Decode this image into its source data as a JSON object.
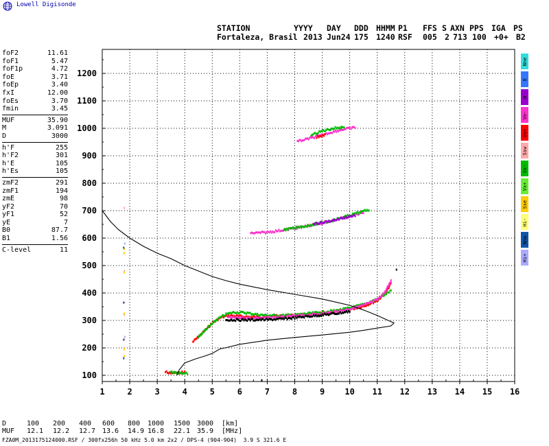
{
  "logo": {
    "text": "Lowell Digisonde"
  },
  "header": {
    "line1": [
      "STATION",
      "YYYY",
      "DAY",
      "DDD",
      "HHMM",
      "P1",
      "FFS",
      "S",
      "AXN",
      "PPS",
      "IGA",
      "PS"
    ],
    "line2": [
      "Fortaleza, Brasil",
      "2013",
      "Jun24",
      "175",
      "1240",
      "RSF",
      "005",
      "2",
      "713",
      "100",
      "+0+",
      "B2"
    ]
  },
  "params": [
    {
      "group": [
        {
          "name": "foF2",
          "value": "11.61"
        },
        {
          "name": "foF1",
          "value": "5.47"
        },
        {
          "name": "foF1p",
          "value": "4.72"
        },
        {
          "name": "foE",
          "value": "3.71"
        },
        {
          "name": "foEp",
          "value": "3.40"
        },
        {
          "name": "fxI",
          "value": "12.00"
        },
        {
          "name": "foEs",
          "value": "3.70"
        },
        {
          "name": "fmin",
          "value": "3.45"
        }
      ]
    },
    {
      "group": [
        {
          "name": "MUF",
          "value": "35.90"
        },
        {
          "name": "M",
          "value": "3.091"
        },
        {
          "name": "D",
          "value": "3000"
        }
      ]
    },
    {
      "group": [
        {
          "name": "h'F",
          "value": "255"
        },
        {
          "name": "h'F2",
          "value": "301"
        },
        {
          "name": "h'E",
          "value": "105"
        },
        {
          "name": "h'Es",
          "value": "105"
        }
      ]
    },
    {
      "group": [
        {
          "name": "zmF2",
          "value": "291"
        },
        {
          "name": "zmF1",
          "value": "194"
        },
        {
          "name": "zmE",
          "value": "98"
        },
        {
          "name": "yF2",
          "value": "70"
        },
        {
          "name": "yF1",
          "value": "52"
        },
        {
          "name": "yE",
          "value": "7"
        },
        {
          "name": "B0",
          "value": "87.7"
        },
        {
          "name": "B1",
          "value": "1.56"
        }
      ]
    },
    {
      "group": [
        {
          "name": "C-level",
          "value": "11"
        }
      ]
    }
  ],
  "legend": [
    {
      "label": "Nne",
      "color": "#33dddd"
    },
    {
      "label": "E",
      "color": "#3377ff"
    },
    {
      "label": "W",
      "color": "#9900cc"
    },
    {
      "label": "Vo-",
      "color": "#ff33cc"
    },
    {
      "label": "Vo+",
      "color": "#ff0000"
    },
    {
      "label": "Ssw",
      "color": "#ffaaaa"
    },
    {
      "label": "Vx-",
      "color": "#00bb00"
    },
    {
      "label": "Vx+",
      "color": "#66ee33"
    },
    {
      "label": "Sse",
      "color": "#ffcc00"
    },
    {
      "label": "Hi-",
      "color": "#ffff77"
    },
    {
      "label": "Nnw",
      "color": "#1155aa"
    },
    {
      "label": "Hi+",
      "color": "#aaaaff"
    }
  ],
  "bottom": {
    "d_label": "D",
    "d_values": [
      "100",
      "200",
      "400",
      "600",
      "800",
      "1000",
      "1500",
      "3000"
    ],
    "d_unit": "[km]",
    "muf_label": "MUF",
    "muf_values": [
      "12.1",
      "12.2",
      "12.7",
      "13.6",
      "14.9",
      "16.8",
      "22.1",
      "35.9"
    ],
    "muf_unit": "[MHz]",
    "file_line": "FZA0M_2013175124000.RSF / 300fx256h 50 kHz 5.0 km 2x2 / DPS-4 (904-904)  3.9 S 321.6 E"
  },
  "chart_data": {
    "type": "scatter",
    "xlim": [
      1,
      16
    ],
    "ylim": [
      75,
      1280
    ],
    "x_ticks": [
      1,
      2,
      3,
      4,
      5,
      6,
      7,
      8,
      9,
      10,
      11,
      12,
      13,
      14,
      15,
      16
    ],
    "y_ticks": [
      100,
      200,
      300,
      400,
      500,
      600,
      700,
      800,
      900,
      1000,
      1100,
      1200
    ],
    "grid": true,
    "profile": [
      [
        1.0,
        700
      ],
      [
        1.3,
        660
      ],
      [
        1.6,
        630
      ],
      [
        2.0,
        600
      ],
      [
        2.5,
        570
      ],
      [
        3.0,
        545
      ],
      [
        3.5,
        525
      ],
      [
        4.0,
        500
      ],
      [
        4.5,
        480
      ],
      [
        5.0,
        460
      ],
      [
        5.5,
        445
      ],
      [
        6.0,
        432
      ],
      [
        7.0,
        412
      ],
      [
        8.0,
        395
      ],
      [
        9.0,
        378
      ],
      [
        10.0,
        355
      ],
      [
        10.5,
        338
      ],
      [
        11.0,
        318
      ],
      [
        11.4,
        300
      ],
      [
        11.61,
        291
      ],
      [
        11.5,
        280
      ],
      [
        11.0,
        272
      ],
      [
        10.5,
        264
      ],
      [
        10.0,
        257
      ],
      [
        9.5,
        252
      ],
      [
        9.0,
        247
      ],
      [
        8.0,
        238
      ],
      [
        7.0,
        228
      ],
      [
        6.0,
        213
      ],
      [
        5.47,
        200
      ],
      [
        5.3,
        197
      ],
      [
        5.0,
        180
      ],
      [
        4.72,
        170
      ],
      [
        4.4,
        160
      ],
      [
        4.0,
        145
      ],
      [
        3.8,
        120
      ],
      [
        3.71,
        100
      ]
    ],
    "traces": [
      {
        "color": "#ff0000",
        "points": [
          [
            4.3,
            222
          ],
          [
            4.6,
            250
          ],
          [
            5.0,
            290
          ],
          [
            5.3,
            310
          ],
          [
            5.6,
            318
          ],
          [
            6.0,
            315
          ],
          [
            6.5,
            312
          ],
          [
            7.0,
            314
          ],
          [
            7.5,
            316
          ],
          [
            8.0,
            318
          ],
          [
            8.5,
            322
          ],
          [
            9.0,
            326
          ],
          [
            9.5,
            332
          ],
          [
            10.0,
            340
          ],
          [
            10.5,
            352
          ],
          [
            11.0,
            372
          ],
          [
            11.3,
            400
          ],
          [
            11.5,
            435
          ]
        ]
      },
      {
        "color": "#00bb00",
        "points": [
          [
            4.5,
            240
          ],
          [
            4.8,
            270
          ],
          [
            5.2,
            305
          ],
          [
            5.5,
            322
          ],
          [
            5.8,
            330
          ],
          [
            6.2,
            328
          ],
          [
            6.6,
            322
          ],
          [
            7.0,
            318
          ],
          [
            7.5,
            318
          ],
          [
            8.0,
            320
          ],
          [
            8.5,
            325
          ],
          [
            9.0,
            330
          ],
          [
            9.5,
            336
          ],
          [
            10.0,
            345
          ],
          [
            10.5,
            358
          ],
          [
            11.0,
            378
          ],
          [
            11.3,
            395
          ],
          [
            11.5,
            408
          ]
        ]
      },
      {
        "color": "#ff33cc",
        "points": [
          [
            5.6,
            310
          ],
          [
            6.0,
            310
          ],
          [
            6.5,
            308
          ],
          [
            7.0,
            310
          ],
          [
            7.5,
            312
          ],
          [
            8.0,
            316
          ],
          [
            8.5,
            320
          ],
          [
            9.0,
            325
          ],
          [
            9.5,
            332
          ],
          [
            10.0,
            342
          ],
          [
            10.5,
            355
          ],
          [
            11.0,
            375
          ],
          [
            11.3,
            405
          ],
          [
            11.5,
            445
          ]
        ]
      },
      {
        "color": "#000000",
        "points": [
          [
            5.5,
            302
          ],
          [
            6.0,
            302
          ],
          [
            6.5,
            302
          ],
          [
            7.0,
            303
          ],
          [
            7.5,
            305
          ],
          [
            8.0,
            310
          ],
          [
            8.5,
            315
          ],
          [
            9.0,
            320
          ],
          [
            9.5,
            325
          ],
          [
            10.0,
            333
          ]
        ]
      },
      {
        "color": "#ff0000",
        "points": [
          [
            3.3,
            112
          ],
          [
            3.6,
            108
          ],
          [
            3.8,
            110
          ],
          [
            4.0,
            112
          ]
        ]
      },
      {
        "color": "#00bb00",
        "points": [
          [
            3.5,
            110
          ],
          [
            3.8,
            108
          ],
          [
            4.1,
            106
          ]
        ]
      },
      {
        "color": "#ff33cc",
        "points": [
          [
            6.4,
            618
          ],
          [
            6.9,
            620
          ],
          [
            7.5,
            628
          ],
          [
            8.0,
            636
          ],
          [
            8.5,
            645
          ],
          [
            9.0,
            655
          ],
          [
            9.5,
            667
          ],
          [
            10.0,
            680
          ],
          [
            10.5,
            693
          ]
        ]
      },
      {
        "color": "#00bb00",
        "points": [
          [
            7.6,
            630
          ],
          [
            8.2,
            640
          ],
          [
            8.8,
            652
          ],
          [
            9.4,
            665
          ],
          [
            10.0,
            683
          ],
          [
            10.7,
            703
          ]
        ]
      },
      {
        "color": "#9900cc",
        "points": [
          [
            8.7,
            652
          ],
          [
            9.2,
            660
          ],
          [
            9.7,
            672
          ],
          [
            10.2,
            683
          ]
        ]
      },
      {
        "color": "#ff33cc",
        "points": [
          [
            8.1,
            952
          ],
          [
            8.5,
            962
          ],
          [
            8.9,
            972
          ],
          [
            9.3,
            985
          ],
          [
            9.7,
            995
          ],
          [
            10.2,
            1003
          ]
        ]
      },
      {
        "color": "#00bb00",
        "points": [
          [
            8.6,
            975
          ],
          [
            9.0,
            990
          ],
          [
            9.4,
            1000
          ],
          [
            9.8,
            1005
          ]
        ]
      },
      {
        "color": "#ff0000",
        "points": [
          [
            8.8,
            968
          ],
          [
            9.1,
            975
          ]
        ]
      }
    ],
    "scatter": [
      {
        "color": "#ffaaaa",
        "points": [
          [
            1.8,
            710
          ],
          [
            1.8,
            480
          ],
          [
            1.8,
            365
          ],
          [
            1.8,
            320
          ],
          [
            1.8,
            230
          ],
          [
            1.8,
            200
          ]
        ]
      },
      {
        "color": "#ffcc00",
        "points": [
          [
            1.8,
            560
          ],
          [
            1.8,
            545
          ],
          [
            1.8,
            475
          ],
          [
            1.8,
            325
          ],
          [
            1.8,
            195
          ],
          [
            1.8,
            170
          ]
        ]
      },
      {
        "color": "#1155aa",
        "points": [
          [
            1.78,
            565
          ],
          [
            1.78,
            365
          ],
          [
            1.78,
            162
          ],
          [
            1.78,
            230
          ]
        ]
      },
      {
        "color": "#aaaaff",
        "points": [
          [
            1.82,
            240
          ],
          [
            1.82,
            580
          ]
        ]
      },
      {
        "color": "#000000",
        "points": [
          [
            11.7,
            485
          ],
          [
            6.8,
            82
          ]
        ]
      }
    ]
  }
}
